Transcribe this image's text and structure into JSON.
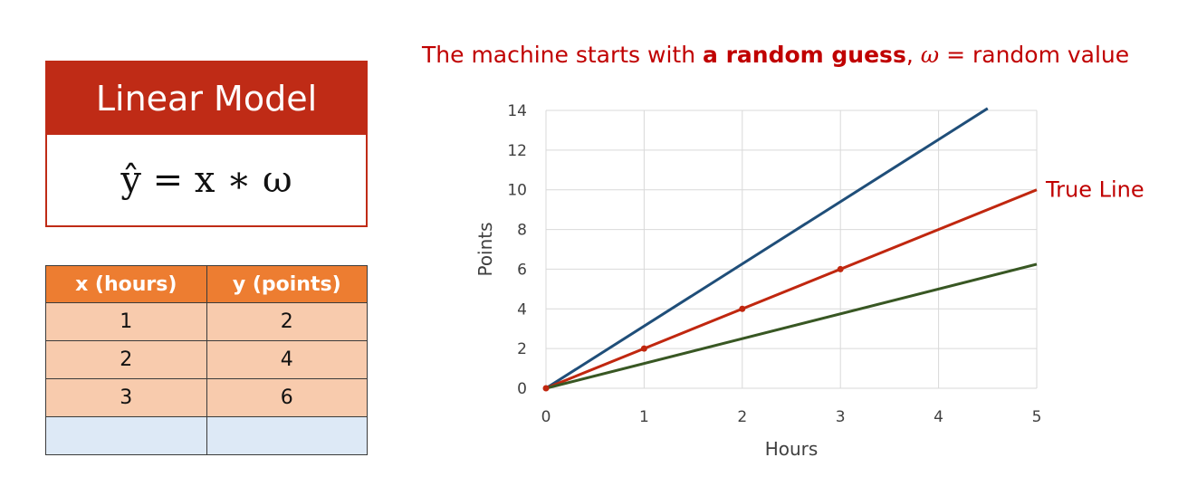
{
  "model": {
    "title": "Linear Model",
    "formula": "ŷ = x ∗ ω"
  },
  "table": {
    "headers": [
      "x (hours)",
      "y (points)"
    ],
    "rows": [
      [
        "1",
        "2"
      ],
      [
        "2",
        "4"
      ],
      [
        "3",
        "6"
      ],
      [
        "",
        ""
      ]
    ]
  },
  "headline": {
    "prefix": "The machine starts with ",
    "bold": "a random guess",
    "comma": ", ",
    "symbol": "ω",
    "suffix": " = random value"
  },
  "colors": {
    "accent_red": "#c00000",
    "header_red": "#bf2b16",
    "table_header": "#ed7d31",
    "table_cell": "#f8cbad",
    "table_empty": "#dde9f6"
  },
  "chart_data": {
    "type": "line",
    "xlabel": "Hours",
    "ylabel": "Points",
    "xlim": [
      0,
      5
    ],
    "ylim": [
      0,
      14
    ],
    "xticks": [
      0,
      1,
      2,
      3,
      4,
      5
    ],
    "yticks": [
      0,
      2,
      4,
      6,
      8,
      10,
      12,
      14
    ],
    "grid": true,
    "series": [
      {
        "color": "#1f4e79",
        "points": [
          [
            0,
            0
          ],
          [
            4.5,
            14.1
          ]
        ],
        "markers": false
      },
      {
        "color": "#c0270f",
        "points": [
          [
            0,
            0
          ],
          [
            5,
            10
          ]
        ],
        "markers": false
      },
      {
        "color": "#385723",
        "points": [
          [
            0,
            0
          ],
          [
            5,
            6.25
          ]
        ],
        "markers": false
      },
      {
        "color": "#c0270f",
        "points": [
          [
            0,
            0
          ],
          [
            1,
            2
          ],
          [
            2,
            4
          ],
          [
            3,
            6
          ]
        ],
        "markers": true
      }
    ],
    "annotations": [
      {
        "text": "True Line",
        "x": 5,
        "y": 10,
        "color": "#c00000"
      }
    ]
  }
}
